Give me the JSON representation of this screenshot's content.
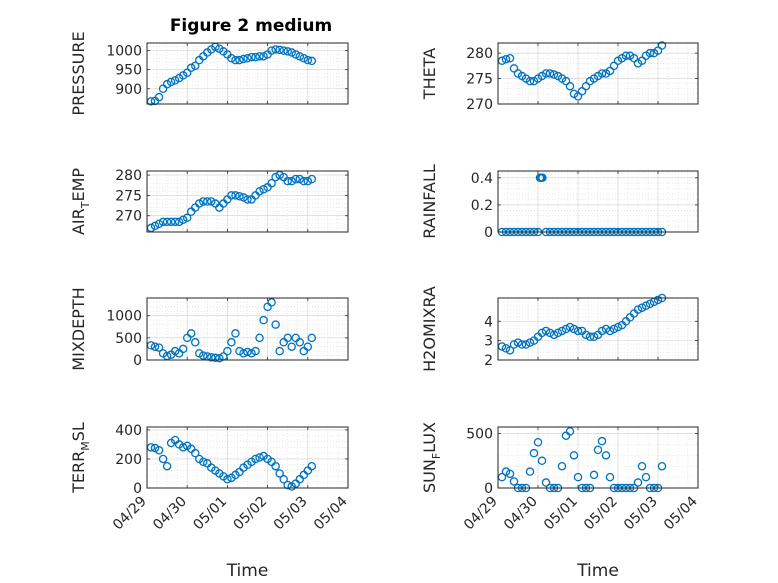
{
  "figure": {
    "title": "Figure 2 medium"
  },
  "colors": {
    "marker": "#0072BD",
    "axis": "#262626",
    "grid": "#b0b0b0",
    "background": "#ffffff"
  },
  "chart_data": [
    {
      "type": "scatter",
      "ylabel": "PRESSURE",
      "title": "Figure 2 medium",
      "xlim": [
        0,
        5
      ],
      "ylim": [
        860,
        1020
      ],
      "yticks": [
        900,
        950,
        1000
      ],
      "x_tick_labels": [],
      "grid": true,
      "x": [
        0.1,
        0.2,
        0.3,
        0.4,
        0.5,
        0.6,
        0.7,
        0.8,
        0.9,
        1.0,
        1.1,
        1.2,
        1.3,
        1.4,
        1.5,
        1.6,
        1.7,
        1.8,
        1.9,
        2.0,
        2.1,
        2.2,
        2.3,
        2.4,
        2.5,
        2.6,
        2.7,
        2.8,
        2.9,
        3.0,
        3.1,
        3.2,
        3.3,
        3.4,
        3.5,
        3.6,
        3.7,
        3.8,
        3.9,
        4.0,
        4.1
      ],
      "y": [
        867,
        868,
        878,
        900,
        912,
        918,
        922,
        928,
        935,
        942,
        955,
        960,
        975,
        985,
        995,
        1003,
        1010,
        1005,
        998,
        990,
        980,
        975,
        975,
        978,
        980,
        983,
        983,
        985,
        985,
        990,
        1000,
        1003,
        1002,
        1000,
        998,
        995,
        990,
        985,
        980,
        975,
        973
      ]
    },
    {
      "type": "scatter",
      "ylabel": "THETA",
      "xlim": [
        0,
        5
      ],
      "ylim": [
        270,
        282
      ],
      "yticks": [
        270,
        275,
        280
      ],
      "x_tick_labels": [],
      "grid": true,
      "x": [
        0.1,
        0.2,
        0.3,
        0.4,
        0.5,
        0.6,
        0.7,
        0.8,
        0.9,
        1.0,
        1.1,
        1.2,
        1.3,
        1.4,
        1.5,
        1.6,
        1.7,
        1.8,
        1.9,
        2.0,
        2.1,
        2.2,
        2.3,
        2.4,
        2.5,
        2.6,
        2.7,
        2.8,
        2.9,
        3.0,
        3.1,
        3.2,
        3.3,
        3.4,
        3.5,
        3.6,
        3.7,
        3.8,
        3.9,
        4.0,
        4.1
      ],
      "y": [
        278.5,
        278.8,
        279,
        277,
        276,
        275.5,
        275,
        274.5,
        274.5,
        275,
        275.5,
        276,
        276,
        275.8,
        275.5,
        275,
        274.5,
        273.5,
        272,
        271.5,
        272.5,
        273.5,
        274.5,
        275,
        275.5,
        276,
        276,
        276.5,
        277.5,
        278.5,
        279,
        279.5,
        279.5,
        279,
        278,
        278.5,
        279.5,
        280,
        280,
        280.5,
        281.5
      ]
    },
    {
      "type": "scatter",
      "ylabel": "AIR_TEMP",
      "xlim": [
        0,
        5
      ],
      "ylim": [
        266,
        281
      ],
      "yticks": [
        270,
        275,
        280
      ],
      "x_tick_labels": [],
      "grid": true,
      "x": [
        0.1,
        0.2,
        0.3,
        0.4,
        0.5,
        0.6,
        0.7,
        0.8,
        0.9,
        1.0,
        1.1,
        1.2,
        1.3,
        1.4,
        1.5,
        1.6,
        1.7,
        1.8,
        1.9,
        2.0,
        2.1,
        2.2,
        2.3,
        2.4,
        2.5,
        2.6,
        2.7,
        2.8,
        2.9,
        3.0,
        3.1,
        3.2,
        3.3,
        3.4,
        3.5,
        3.6,
        3.7,
        3.8,
        3.9,
        4.0,
        4.1
      ],
      "y": [
        267,
        267.5,
        268,
        268.5,
        268.5,
        268.5,
        268.5,
        268.5,
        269,
        269.5,
        271,
        272,
        273,
        273.5,
        273.5,
        273.5,
        273,
        272,
        273,
        274,
        275,
        275,
        274.8,
        274.5,
        274,
        274,
        275,
        276,
        276.5,
        277,
        278,
        279.5,
        280,
        279.5,
        278.5,
        278.5,
        279,
        279,
        278.5,
        278.5,
        279
      ]
    },
    {
      "type": "scatter",
      "ylabel": "RAINFALL",
      "xlim": [
        0,
        5
      ],
      "ylim": [
        0,
        0.45
      ],
      "yticks": [
        0,
        0.2,
        0.4
      ],
      "x_tick_labels": [],
      "grid": true,
      "x": [
        0.1,
        0.2,
        0.3,
        0.4,
        0.5,
        0.6,
        0.7,
        0.8,
        0.9,
        1.0,
        1.05,
        1.08,
        1.11,
        1.2,
        1.3,
        1.4,
        1.5,
        1.6,
        1.7,
        1.8,
        1.9,
        2.0,
        2.1,
        2.2,
        2.3,
        2.4,
        2.5,
        2.6,
        2.7,
        2.8,
        2.9,
        3.0,
        3.1,
        3.2,
        3.3,
        3.4,
        3.5,
        3.6,
        3.7,
        3.8,
        3.9,
        4.0,
        4.1
      ],
      "y": [
        0,
        0,
        0,
        0,
        0,
        0,
        0,
        0,
        0,
        0,
        0.4,
        0.4,
        0.4,
        0,
        0,
        0,
        0,
        0,
        0,
        0,
        0,
        0,
        0,
        0,
        0,
        0,
        0,
        0,
        0,
        0,
        0,
        0,
        0,
        0,
        0,
        0,
        0,
        0,
        0,
        0,
        0,
        0,
        0
      ]
    },
    {
      "type": "scatter",
      "ylabel": "MIXDEPTH",
      "xlim": [
        0,
        5
      ],
      "ylim": [
        0,
        1400
      ],
      "yticks": [
        0,
        500,
        1000
      ],
      "x_tick_labels": [],
      "grid": true,
      "x": [
        0.1,
        0.2,
        0.3,
        0.4,
        0.5,
        0.6,
        0.7,
        0.8,
        0.9,
        1.0,
        1.1,
        1.2,
        1.3,
        1.4,
        1.5,
        1.6,
        1.7,
        1.8,
        1.9,
        2.0,
        2.1,
        2.2,
        2.3,
        2.4,
        2.5,
        2.6,
        2.7,
        2.8,
        2.9,
        3.0,
        3.1,
        3.2,
        3.3,
        3.4,
        3.5,
        3.6,
        3.7,
        3.8,
        3.9,
        4.0,
        4.1
      ],
      "y": [
        330,
        300,
        280,
        150,
        90,
        120,
        200,
        150,
        250,
        500,
        600,
        400,
        150,
        100,
        80,
        60,
        50,
        40,
        80,
        200,
        400,
        600,
        200,
        150,
        180,
        150,
        200,
        500,
        900,
        1200,
        1300,
        800,
        200,
        400,
        500,
        300,
        500,
        400,
        200,
        300,
        500
      ]
    },
    {
      "type": "scatter",
      "ylabel": "H2OMIXRA",
      "xlim": [
        0,
        5
      ],
      "ylim": [
        2,
        5.2
      ],
      "yticks": [
        2,
        3,
        4
      ],
      "x_tick_labels": [],
      "grid": true,
      "x": [
        0.1,
        0.2,
        0.3,
        0.4,
        0.5,
        0.6,
        0.7,
        0.8,
        0.9,
        1.0,
        1.1,
        1.2,
        1.3,
        1.4,
        1.5,
        1.6,
        1.7,
        1.8,
        1.9,
        2.0,
        2.1,
        2.2,
        2.3,
        2.4,
        2.5,
        2.6,
        2.7,
        2.8,
        2.9,
        3.0,
        3.1,
        3.2,
        3.3,
        3.4,
        3.5,
        3.6,
        3.7,
        3.8,
        3.9,
        4.0,
        4.1
      ],
      "y": [
        2.7,
        2.6,
        2.5,
        2.8,
        2.9,
        2.8,
        2.8,
        2.9,
        3.0,
        3.2,
        3.4,
        3.5,
        3.4,
        3.3,
        3.4,
        3.5,
        3.6,
        3.7,
        3.6,
        3.5,
        3.5,
        3.3,
        3.2,
        3.2,
        3.3,
        3.5,
        3.6,
        3.5,
        3.6,
        3.7,
        3.8,
        4.0,
        4.2,
        4.4,
        4.6,
        4.7,
        4.8,
        4.9,
        5.0,
        5.1,
        5.2
      ]
    },
    {
      "type": "scatter",
      "ylabel": "TERR_MSL",
      "xlim": [
        0,
        5
      ],
      "ylim": [
        0,
        420
      ],
      "yticks": [
        0,
        200,
        400
      ],
      "x_tick_labels": [
        "04/29",
        "04/30",
        "05/01",
        "05/02",
        "05/03",
        "05/04"
      ],
      "xlabel": "Time",
      "grid": true,
      "x": [
        0.1,
        0.2,
        0.3,
        0.4,
        0.5,
        0.6,
        0.7,
        0.8,
        0.9,
        1.0,
        1.1,
        1.2,
        1.3,
        1.4,
        1.5,
        1.6,
        1.7,
        1.8,
        1.9,
        2.0,
        2.1,
        2.2,
        2.3,
        2.4,
        2.5,
        2.6,
        2.7,
        2.8,
        2.9,
        3.0,
        3.1,
        3.2,
        3.3,
        3.4,
        3.5,
        3.6,
        3.7,
        3.8,
        3.9,
        4.0,
        4.1
      ],
      "y": [
        280,
        275,
        260,
        200,
        150,
        310,
        330,
        300,
        280,
        290,
        270,
        240,
        200,
        180,
        170,
        140,
        120,
        100,
        80,
        60,
        70,
        90,
        110,
        140,
        160,
        180,
        200,
        210,
        220,
        200,
        180,
        150,
        100,
        60,
        20,
        10,
        30,
        60,
        90,
        120,
        150
      ]
    },
    {
      "type": "scatter",
      "ylabel": "SUN_FLUX",
      "xlim": [
        0,
        5
      ],
      "ylim": [
        0,
        560
      ],
      "yticks": [
        0,
        500
      ],
      "x_tick_labels": [
        "04/29",
        "04/30",
        "05/01",
        "05/02",
        "05/03",
        "05/04"
      ],
      "xlabel": "Time",
      "grid": true,
      "x": [
        0.1,
        0.2,
        0.3,
        0.4,
        0.5,
        0.6,
        0.7,
        0.8,
        0.9,
        1.0,
        1.1,
        1.2,
        1.3,
        1.4,
        1.5,
        1.6,
        1.7,
        1.8,
        1.9,
        2.0,
        2.1,
        2.2,
        2.3,
        2.4,
        2.5,
        2.6,
        2.7,
        2.8,
        2.9,
        3.0,
        3.1,
        3.2,
        3.3,
        3.4,
        3.5,
        3.6,
        3.7,
        3.8,
        3.9,
        4.0,
        4.1
      ],
      "y": [
        100,
        150,
        130,
        60,
        0,
        0,
        0,
        150,
        320,
        420,
        250,
        50,
        0,
        0,
        0,
        200,
        480,
        520,
        300,
        100,
        0,
        0,
        0,
        120,
        350,
        430,
        300,
        100,
        0,
        0,
        0,
        0,
        0,
        0,
        50,
        200,
        100,
        0,
        0,
        0,
        200
      ]
    }
  ]
}
